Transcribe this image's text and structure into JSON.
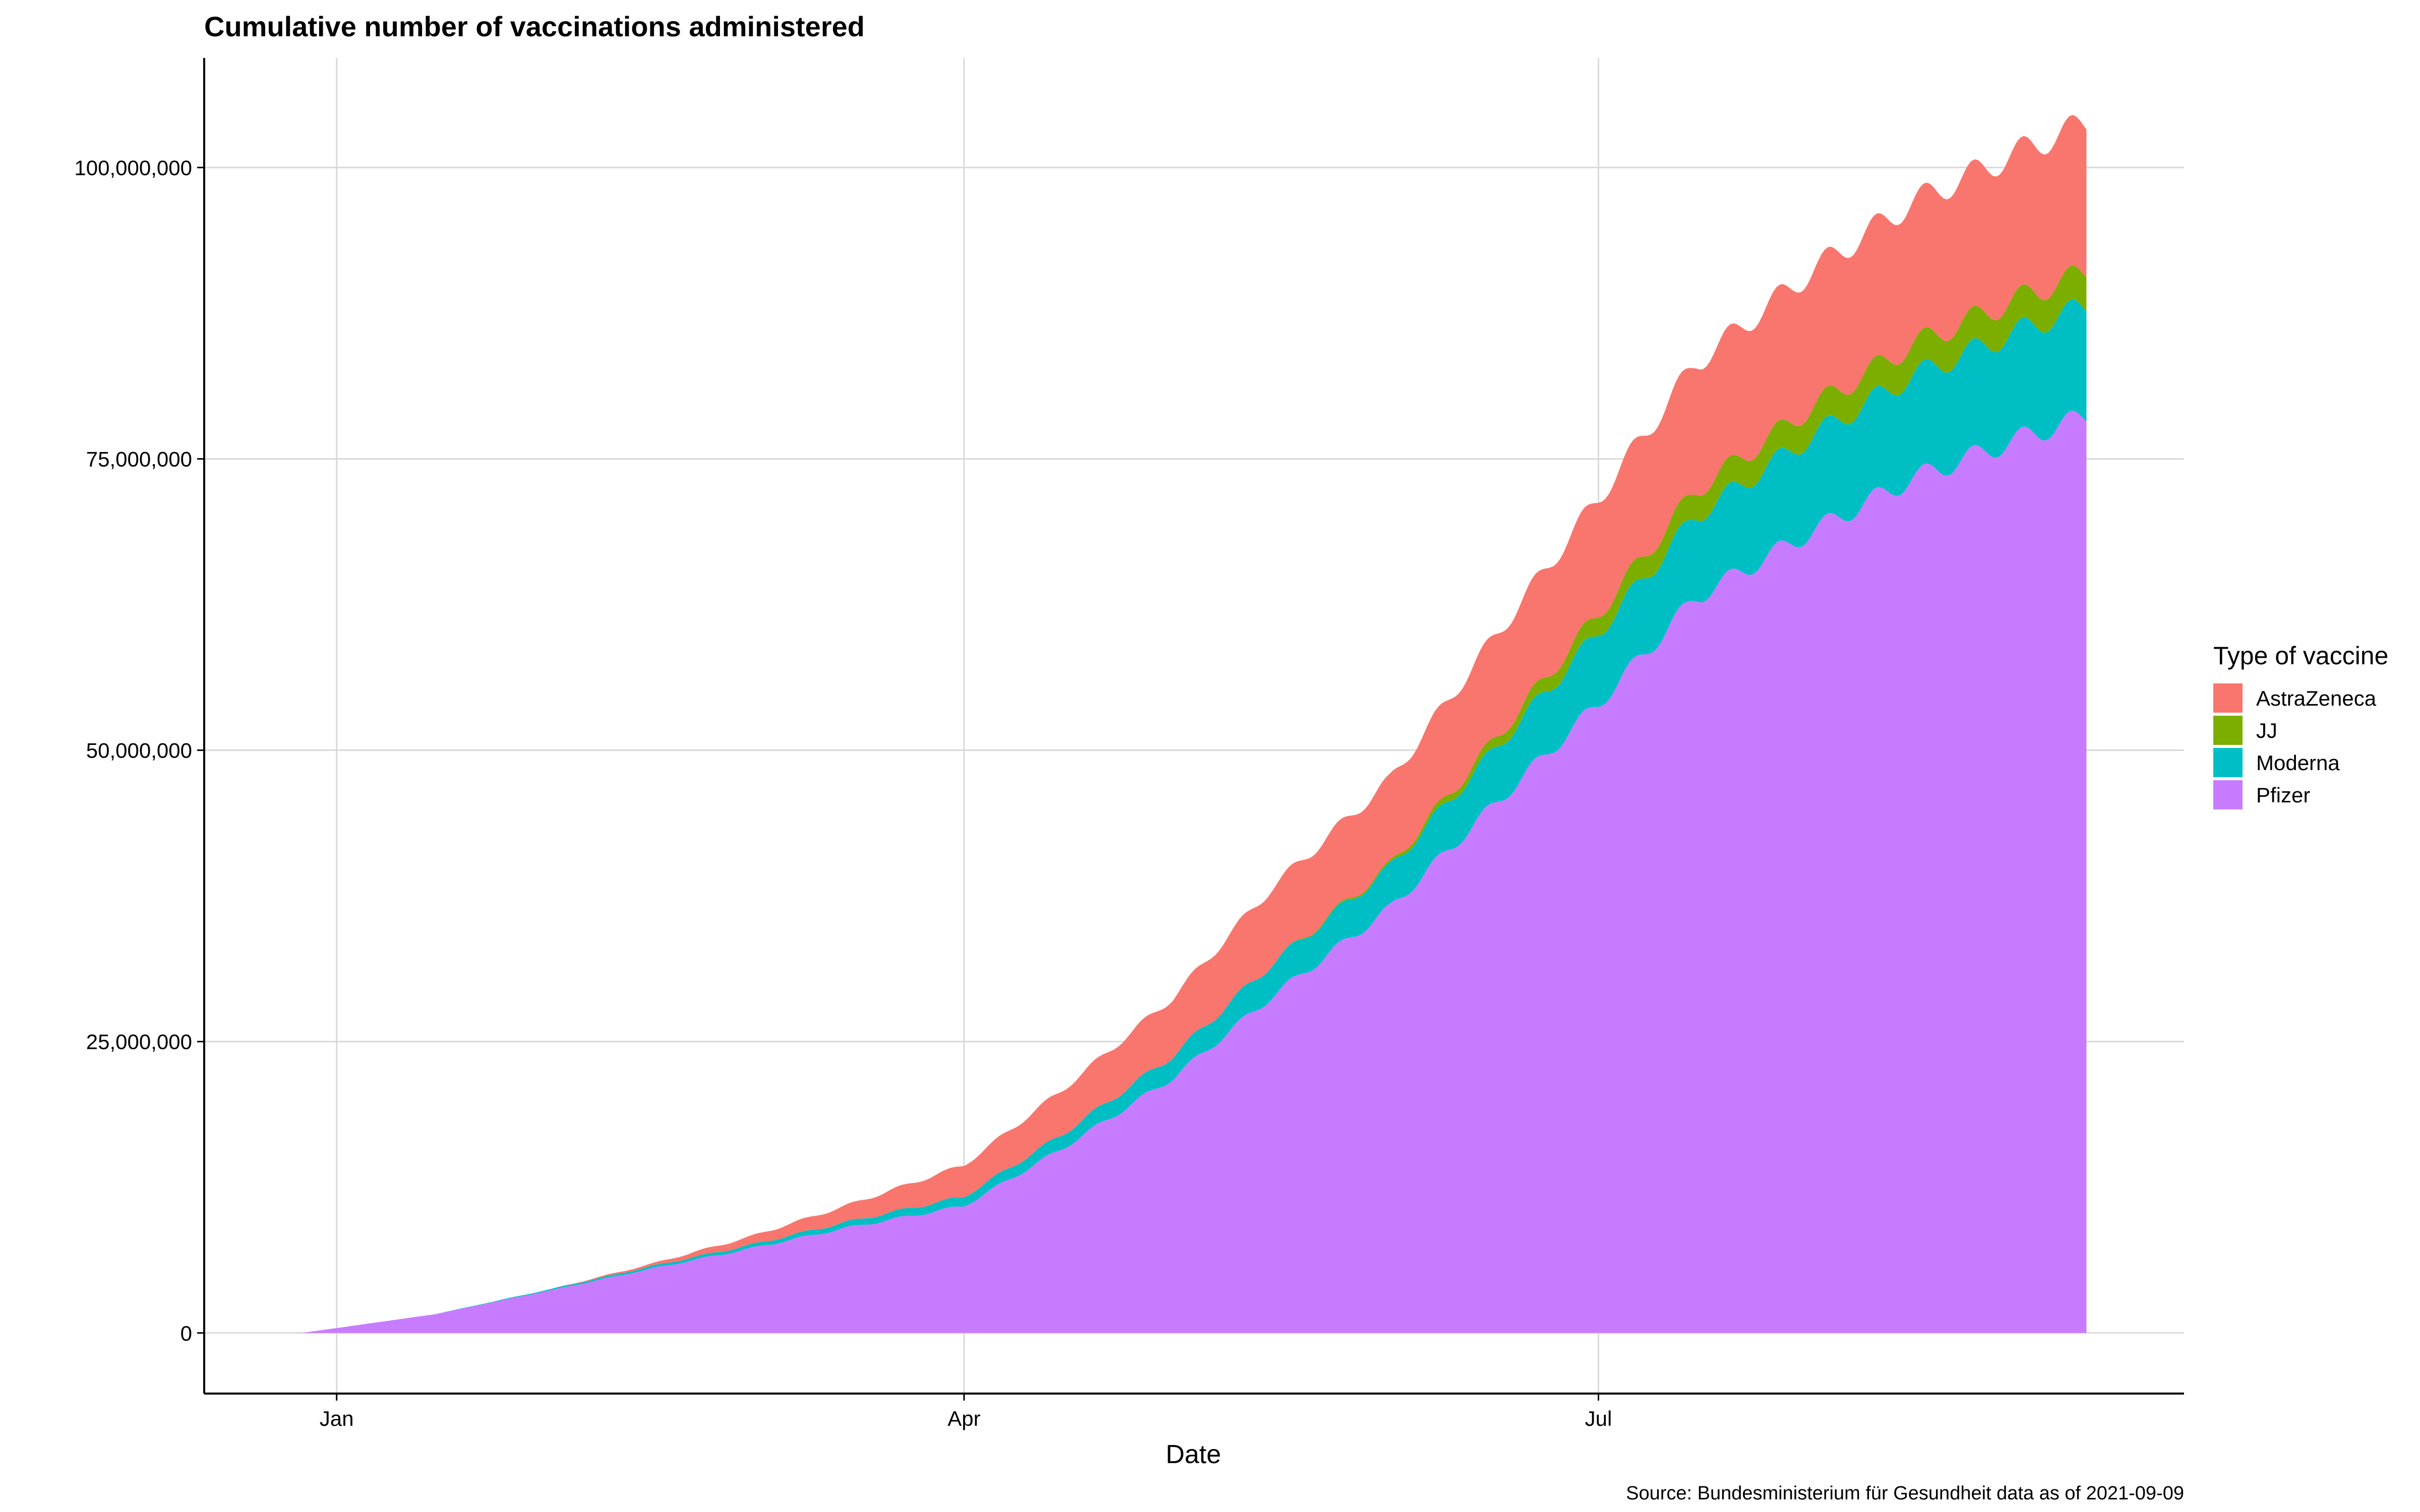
{
  "chart_data": {
    "type": "area",
    "stacked": true,
    "title": "Cumulative number of vaccinations administered",
    "xlabel": "Date",
    "ylabel": "",
    "caption": "Source: Bundesministerium für Gesundheit data as of 2021-09-09",
    "x_ticks": [
      {
        "label": "Jan",
        "date": "2021-01-01"
      },
      {
        "label": "Apr",
        "date": "2021-04-01"
      },
      {
        "label": "Jul",
        "date": "2021-07-01"
      }
    ],
    "y_ticks": [
      {
        "label": "0",
        "value": 0
      },
      {
        "label": "25,000,000",
        "value": 25000000
      },
      {
        "label": "50,000,000",
        "value": 50000000
      },
      {
        "label": "75,000,000",
        "value": 75000000
      },
      {
        "label": "100,000,000",
        "value": 100000000
      }
    ],
    "xlim": [
      "2020-12-13",
      "2021-09-23"
    ],
    "ylim": [
      -5200000,
      109400000
    ],
    "grid": true,
    "legend": {
      "title": "Type of vaccine",
      "position": "right"
    },
    "x": [
      "2020-12-27",
      "2021-01-15",
      "2021-02-01",
      "2021-02-15",
      "2021-03-01",
      "2021-03-15",
      "2021-04-01",
      "2021-04-15",
      "2021-05-01",
      "2021-05-15",
      "2021-06-01",
      "2021-06-15",
      "2021-07-01",
      "2021-07-15",
      "2021-08-01",
      "2021-08-15",
      "2021-09-01",
      "2021-09-09"
    ],
    "series": [
      {
        "name": "Pfizer",
        "color": "#C77CFF",
        "values": [
          0,
          1600000,
          3700000,
          5500000,
          7200000,
          9000000,
          10900000,
          15800000,
          21900000,
          28800000,
          36400000,
          44700000,
          54000000,
          63100000,
          68900000,
          73300000,
          77100000,
          78600000
        ]
      },
      {
        "name": "Moderna",
        "color": "#00BFC4",
        "values": [
          0,
          0,
          100000,
          200000,
          300000,
          500000,
          800000,
          1200000,
          1900000,
          2800000,
          3500000,
          4600000,
          6100000,
          7000000,
          8200000,
          8800000,
          9300000,
          9500000
        ]
      },
      {
        "name": "JJ",
        "color": "#7CAE00",
        "values": [
          0,
          0,
          0,
          0,
          0,
          0,
          0,
          0,
          0,
          0,
          200000,
          800000,
          1600000,
          2200000,
          2500000,
          2700000,
          2800000,
          2900000
        ]
      },
      {
        "name": "AstraZeneca",
        "color": "#F8766D",
        "values": [
          0,
          0,
          0,
          200000,
          700000,
          1400000,
          2700000,
          3800000,
          5000000,
          6500000,
          7300000,
          8700000,
          9900000,
          10900000,
          11700000,
          12200000,
          12600000,
          12800000
        ]
      }
    ],
    "legend_order": [
      "AstraZeneca",
      "JJ",
      "Moderna",
      "Pfizer"
    ],
    "colors": {
      "grid": "#D9D9D9",
      "axis": "#000000",
      "background": "#FFFFFF"
    }
  }
}
